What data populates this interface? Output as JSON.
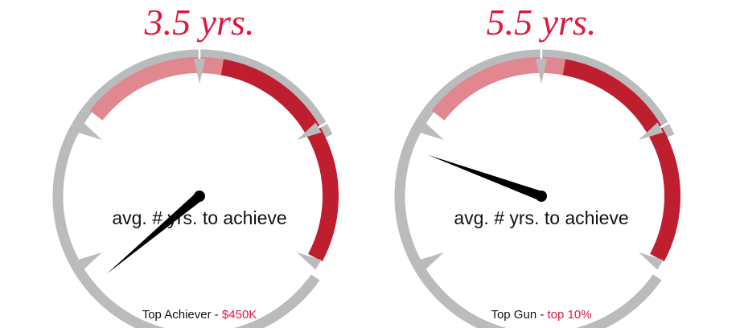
{
  "colors": {
    "accent": "#e0173c",
    "track": "#b9bbbd",
    "band_light": "#e0878f",
    "band_dark": "#be1e2d",
    "needle": "#000000"
  },
  "chart_data": [
    {
      "type": "gauge",
      "value": 3.5,
      "value_label": "3.5 yrs.",
      "caption": "avg. # yrs. to achieve",
      "footer_label": "Top Achiever - ",
      "footer_value": "$450K"
    },
    {
      "type": "gauge",
      "value": 5.5,
      "value_label": "5.5 yrs.",
      "caption": "avg. # yrs. to achieve",
      "footer_label": "Top Gun - ",
      "footer_value": "top 10%"
    }
  ]
}
